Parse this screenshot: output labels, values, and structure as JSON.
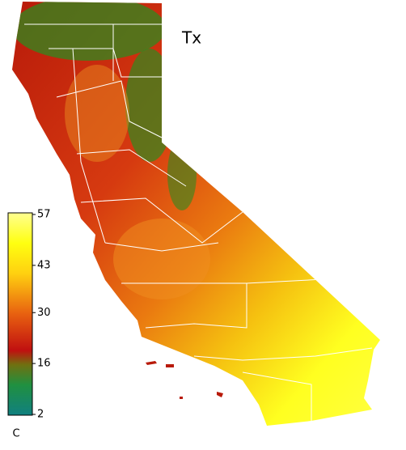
{
  "map": {
    "title": "Tx",
    "colorbar": {
      "lim": [
        2,
        57
      ],
      "ticks": [
        57,
        43,
        30,
        16,
        2
      ],
      "unit": "C"
    }
  }
}
